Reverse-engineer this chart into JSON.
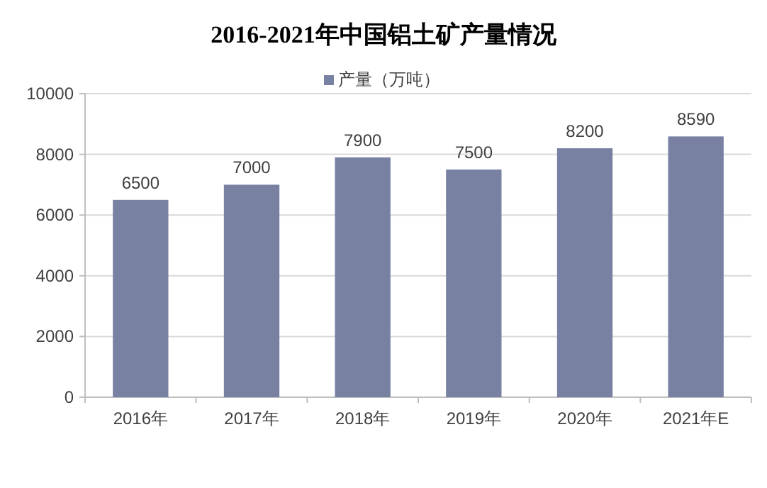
{
  "chart_data": {
    "type": "bar",
    "title": "2016-2021年中国铝土矿产量情况",
    "categories": [
      "2016年",
      "2017年",
      "2018年",
      "2019年",
      "2020年",
      "2021年E"
    ],
    "series": [
      {
        "name": "产量（万吨）",
        "color": "#7981a3",
        "values": [
          6500,
          7000,
          7900,
          7500,
          8200,
          8590
        ]
      }
    ],
    "ylim": [
      0,
      10000
    ],
    "yticks": [
      0,
      2000,
      4000,
      6000,
      8000,
      10000
    ],
    "grid": "y",
    "legend": "top",
    "data_labels": true
  }
}
